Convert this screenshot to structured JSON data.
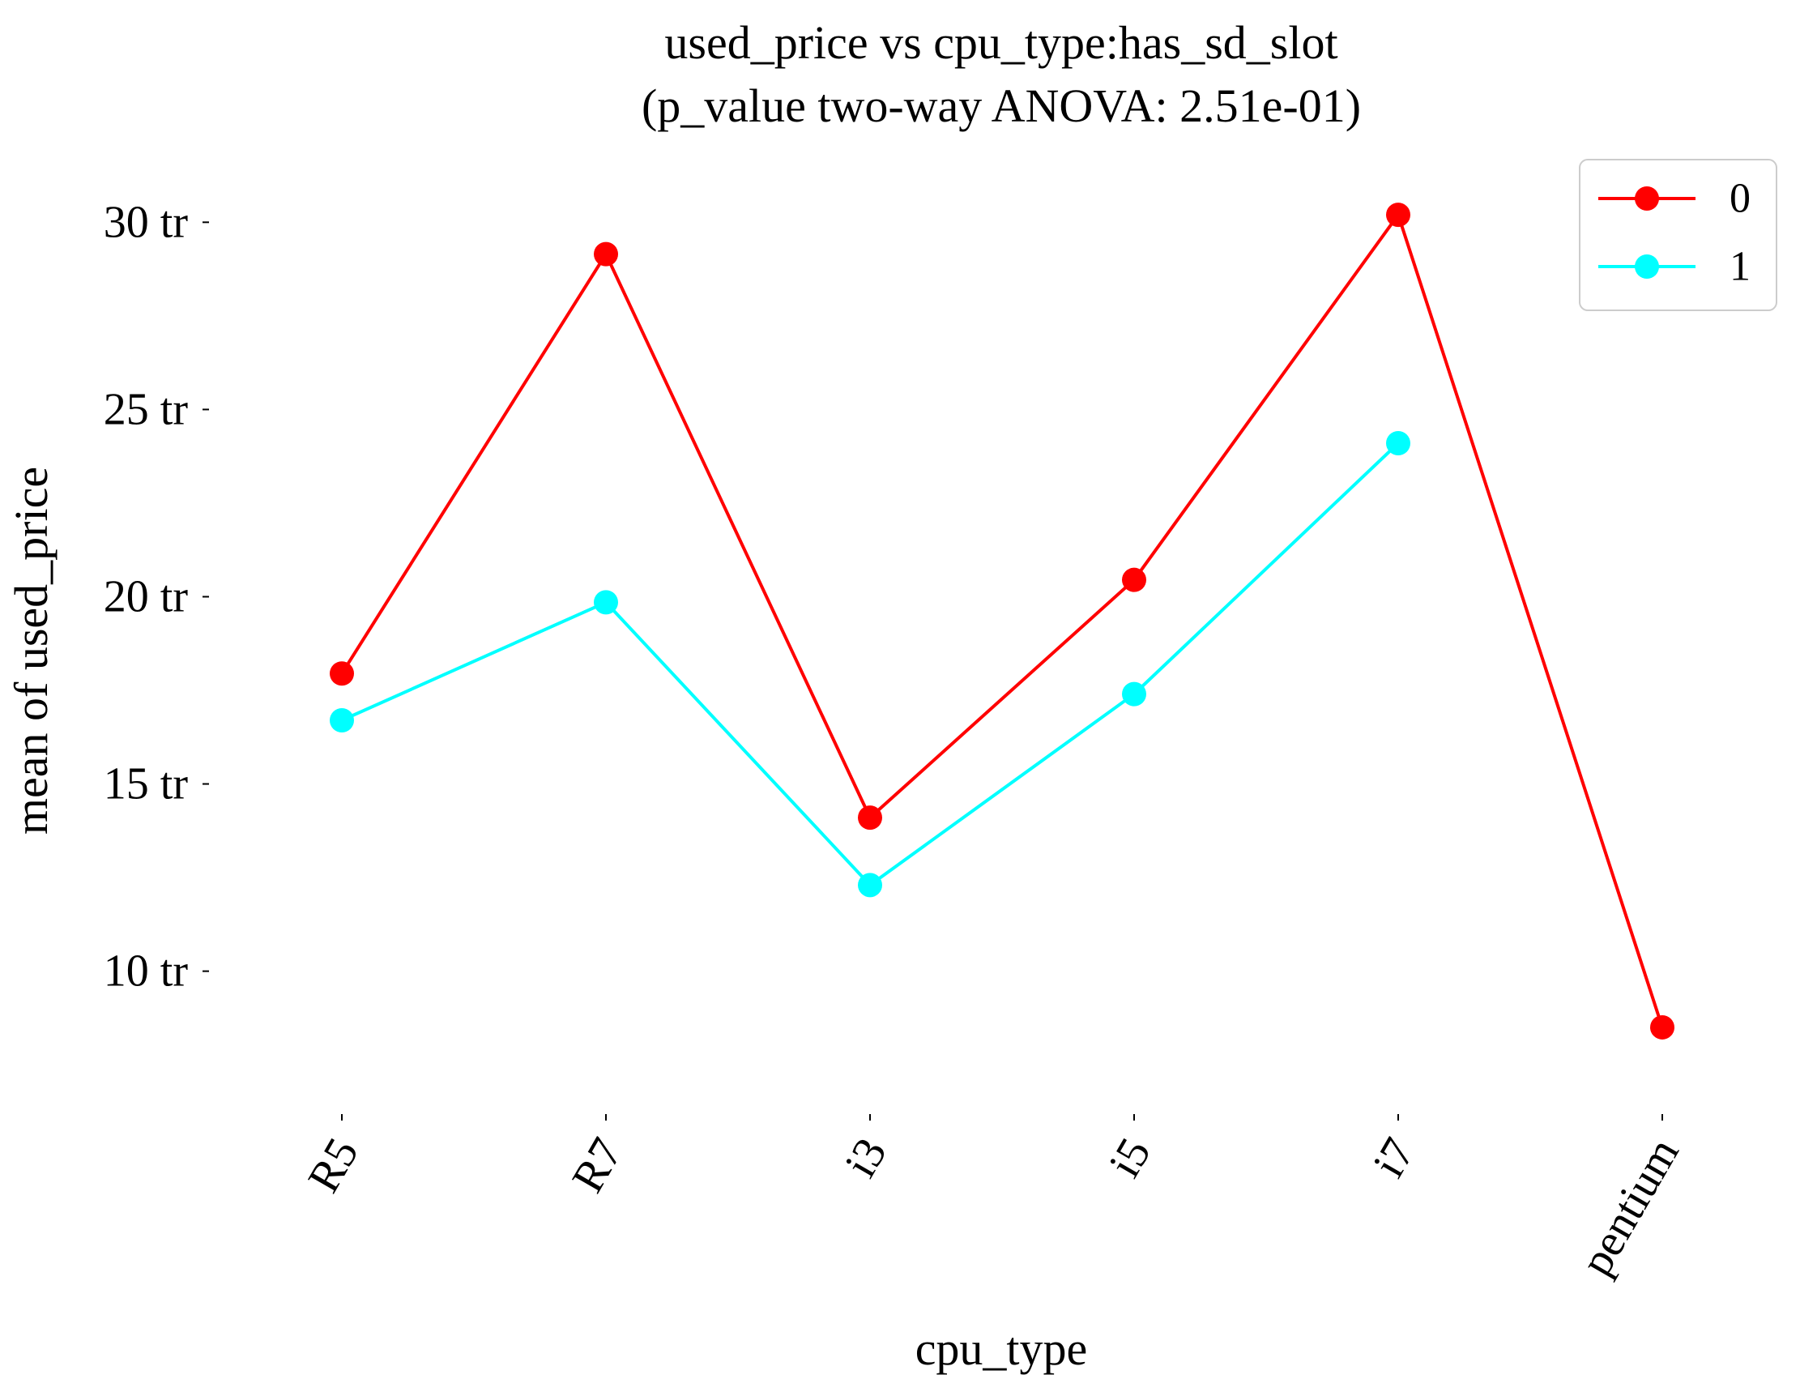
{
  "chart_data": {
    "type": "line",
    "title_lines": [
      "used_price vs cpu_type:has_sd_slot",
      "(p_value two-way ANOVA: 2.51e-01)"
    ],
    "xlabel": "cpu_type",
    "ylabel": "mean of used_price",
    "categories": [
      "R5",
      "R7",
      "i3",
      "i5",
      "i7",
      "pentium"
    ],
    "yticks": [
      10000000,
      15000000,
      20000000,
      25000000,
      30000000
    ],
    "ytick_labels": [
      "10 tr",
      "15 tr",
      "20 tr",
      "25 tr",
      "30 tr"
    ],
    "ylim": [
      6400000,
      31500000
    ],
    "grid": false,
    "legend_position": "top-right",
    "series": [
      {
        "name": "0",
        "color": "#ff0000",
        "values": [
          17950000,
          29150000,
          14100000,
          20450000,
          30200000,
          8500000
        ]
      },
      {
        "name": "1",
        "color": "#00ffff",
        "values": [
          16700000,
          19850000,
          12300000,
          17400000,
          24100000,
          null
        ]
      }
    ]
  }
}
